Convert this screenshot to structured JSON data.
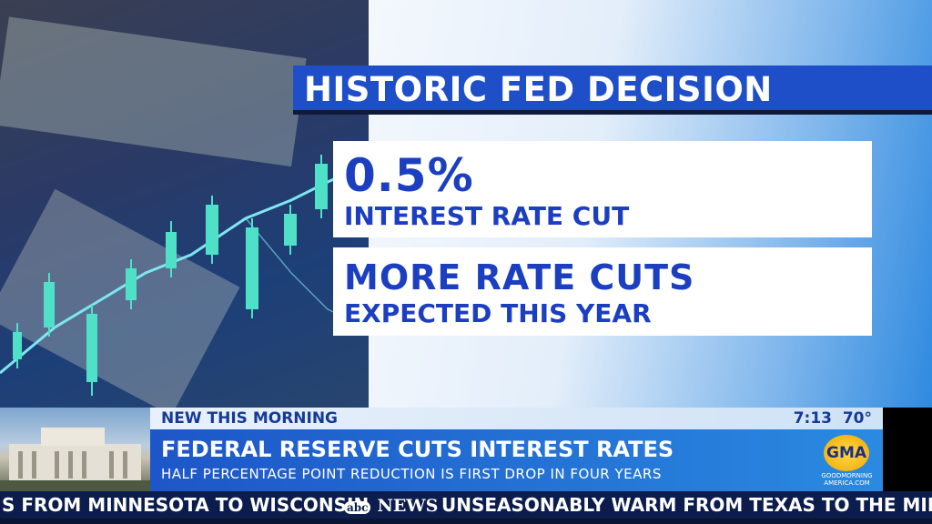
{
  "headline": "HISTORIC FED DECISION",
  "cards": [
    {
      "title": "0.5%",
      "subtitle": "INTEREST RATE CUT"
    },
    {
      "title": "MORE RATE CUTS",
      "subtitle": "EXPECTED THIS YEAR"
    }
  ],
  "lower_third": {
    "kicker": "NEW THIS MORNING",
    "time": "7:13",
    "temperature": "70°",
    "headline": "FEDERAL RESERVE CUTS INTEREST RATES",
    "subheadline": "HALF PERCENTAGE POINT REDUCTION IS FIRST DROP IN FOUR YEARS"
  },
  "logo": {
    "mark": "GMA",
    "line1": "GOODMORNING",
    "line2": "AMERICA.COM"
  },
  "ticker": {
    "items": [
      "S FROM MINNESOTA TO WISCONSIN",
      "UNSEASONABLY WARM FROM TEXAS TO THE MIDWEST"
    ],
    "network_small": "abc",
    "network": "NEWS"
  }
}
